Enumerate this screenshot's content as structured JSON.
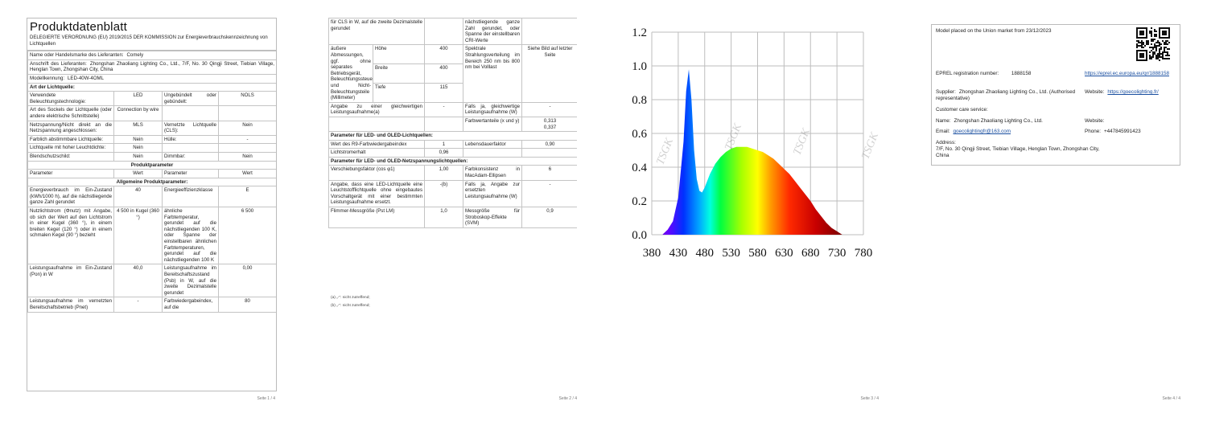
{
  "pages": [
    {
      "title": "Produktdatenblatt",
      "subtitle": "DELEGIERTE VERORDNUNG (EU) 2019/2015 DER KOMMISSION zur Energieverbrauchskennzeichnung von Lichtquellen",
      "rows": [
        [
          {
            "label": "Name oder Handelsmarke des Lieferanten:",
            "value": "Comely"
          }
        ],
        [
          {
            "label": "Anschrift des Lieferanten:",
            "value": "Zhongshan Zhaoliang Lighting Co., Ltd., 7/F, No. 30 Qingji Street, Tiebian Village, Henglan Town, Zhongshan City, China"
          }
        ],
        [
          {
            "label": "Modellkennung:",
            "value": "LED-40W-4OML"
          }
        ],
        [
          "Art der Lichtquelle:"
        ],
        [
          "Verwendete Beleuchtungstechnologie:",
          "LED",
          "Ungebündelt oder gebündelt:",
          "NOLS"
        ],
        [
          "Art des Sockels der Lichtquelle (oder andere elektrische Schnittstelle)",
          "Connection by wire"
        ],
        [
          "Netzspannung/Nicht direkt an die Netzspannung angeschlossen:",
          "MLS",
          "Vernetzte Lichtquelle (CLS):",
          "Nein"
        ],
        [
          "Farblich abstimmbare Lichtquelle:",
          "Nein",
          "Hülle:",
          "-"
        ],
        [
          "Lichtquelle mit hoher Leuchtdichte:",
          "Nein"
        ],
        [
          "Blendschutzschild:",
          "Nein",
          "Dimmbar:",
          "Nein"
        ],
        [
          "Produktparameter"
        ],
        [
          "Parameter",
          "Wert",
          "Parameter",
          "Wert"
        ],
        [
          "Allgemeine Produktparameter:"
        ],
        [
          "Energieverbrauch im Ein-Zustand (kWh/1000 h), auf die nächstliegende ganze Zahl gerundet",
          "40",
          "Energieeffizienzklasse",
          "E"
        ],
        [
          "Nutzlichtstrom (Φnutz) mit Angabe, ob sich der Wert auf den Lichtstrom in einer Kugel (360 °), in einem breiten Kegel (120 °) oder in einem schmalen Kegel (90 °) bezieht",
          "4 500 in Kugel (360 °)",
          "ähnliche Farbtemperatur, gerundet auf die nächstliegenden 100 K, oder Spanne der einstellbaren ähnlichen Farbtemperaturen, gerundet auf die nächstliegenden 100 K",
          "6 500"
        ],
        [
          "Leistungsaufnahme im Ein-Zustand (Pon) in W",
          "40,0",
          "Leistungsaufnahme im Bereitschaftszustand (Psb) in W, auf die zweite Dezimalstelle gerundet",
          "0,00"
        ],
        [
          "Leistungsaufnahme im vernetzten Bereitschaftsbetrieb (Pnet)",
          "-",
          "Farbwiedergabeindex, auf die",
          "80"
        ]
      ],
      "footer": "Seite 1 / 4"
    },
    {
      "rows": [
        [
          "für CLS in W, auf die zweite Dezimalstelle gerundet",
          "nächstliegende ganze Zahl gerundet, oder Spanne der einstellbaren CRI-Werte"
        ],
        [
          "äußere Abmessungen, ggf. ohne separates Betriebsgerät, Beleuchtungssteuerungsteile und Nicht-Beleuchtungsteile (Millimeter)",
          "Höhe",
          "400",
          "Spektrale Strahlungsverteilung im Bereich 250 nm bis 800 nm bei Volllast",
          "Siehe Bild auf letzter Seite"
        ],
        [
          "Breite",
          "400"
        ],
        [
          "Tiefe",
          "115"
        ],
        [
          "Angabe zu einer gleichwertigen Leistungsaufnahme(a)",
          "-",
          "Falls ja, gleichwertige Leistungsaufnahme (W)",
          "-"
        ],
        [
          "Farbwertanteile (x und y)",
          "0,313\n0,337"
        ],
        [
          "Parameter für LED- und OLED-Lichtquellen:"
        ],
        [
          "Wert des R9-Farbwiedergabeindex",
          "1",
          "Lebensdauerfaktor",
          "0,90"
        ],
        [
          "Lichtstromerhalt",
          "0,96"
        ],
        [
          "Parameter für LED- und OLED-Netzspannungslichtquellen:"
        ],
        [
          "Verschiebungsfaktor (cos φ1)",
          "1,00",
          "Farbkonsistenz in MacAdam-Ellipsen",
          "6"
        ],
        [
          "Angabe, dass eine LED-Lichtquelle eine Leuchtstofflichtquelle ohne eingebautes Vorschaltgerät mit einer bestimmten Leistungsaufnahme ersetzt.",
          "-(b)",
          "Falls ja, Angabe zur ersetzten Leistungsaufnahme (W)",
          "-"
        ],
        [
          "Flimmer-Messgröße (Pst LM)",
          "1,0",
          "Messgröße für Stroboskop-Effekte (SVM)",
          "0,9"
        ]
      ],
      "footnotes": [
        "(a) „-“: nicht zutreffend;",
        "(b) „-“: nicht zutreffend;"
      ],
      "footer": "Seite 2 / 4"
    },
    {
      "spectrum": {
        "type": "area",
        "x": [
          400,
          410,
          420,
          430,
          440,
          445,
          450,
          455,
          460,
          465,
          470,
          475,
          480,
          490,
          500,
          510,
          520,
          530,
          540,
          550,
          560,
          570,
          580,
          590,
          600,
          610,
          620,
          630,
          640,
          650,
          660,
          670,
          680,
          690,
          700,
          710,
          720,
          730,
          740
        ],
        "values": [
          0.0,
          0.03,
          0.08,
          0.22,
          0.55,
          0.85,
          0.98,
          0.8,
          0.5,
          0.33,
          0.26,
          0.25,
          0.28,
          0.36,
          0.42,
          0.46,
          0.49,
          0.51,
          0.52,
          0.52,
          0.52,
          0.51,
          0.5,
          0.49,
          0.47,
          0.45,
          0.42,
          0.39,
          0.36,
          0.32,
          0.28,
          0.24,
          0.2,
          0.15,
          0.11,
          0.07,
          0.04,
          0.02,
          0.0
        ],
        "xlim": [
          380,
          780
        ],
        "xticks": [
          380,
          430,
          480,
          530,
          580,
          630,
          680,
          730,
          780
        ],
        "ylim": [
          0,
          1.2
        ],
        "yticks": [
          {
            "value": 0,
            "label": "0.0"
          },
          0.2,
          0.4,
          0.6,
          0.8,
          {
            "value": 1,
            "label": "1.0"
          },
          1.2
        ],
        "grid": true,
        "watermark": "TSGK"
      },
      "footer": "Seite 3 / 4"
    },
    {
      "placed": "Model placed on the Union market from 23/12/2023",
      "eprel": {
        "label": "EPREL registration number:",
        "value": "1888158",
        "link": "https://eprel.ec.europa.eu/qr/1888158"
      },
      "supplier": {
        "label": "Supplier:",
        "value": "Zhongshan Zhaoliang Lighting Co., Ltd. (Authorised representative)"
      },
      "website": {
        "label": "Website:",
        "value": "https://goecolighting.fr/"
      },
      "customer_care": "Customer care service:",
      "name": {
        "label": "Name:",
        "value": "Zhongshan Zhaoliang Lighting Co., Ltd."
      },
      "care_website": {
        "label": "Website:"
      },
      "email": {
        "label": "Email:",
        "value": "goecolightingfr@163.com"
      },
      "phone": {
        "label": "Phone:",
        "value": "+447845991423"
      },
      "address": {
        "label": "Address:",
        "value": "7/F, No. 30 Qingji Street, Tiebian Village, Henglan Town, Zhongshan City, China"
      },
      "footer": "Seite 4 / 4"
    }
  ]
}
